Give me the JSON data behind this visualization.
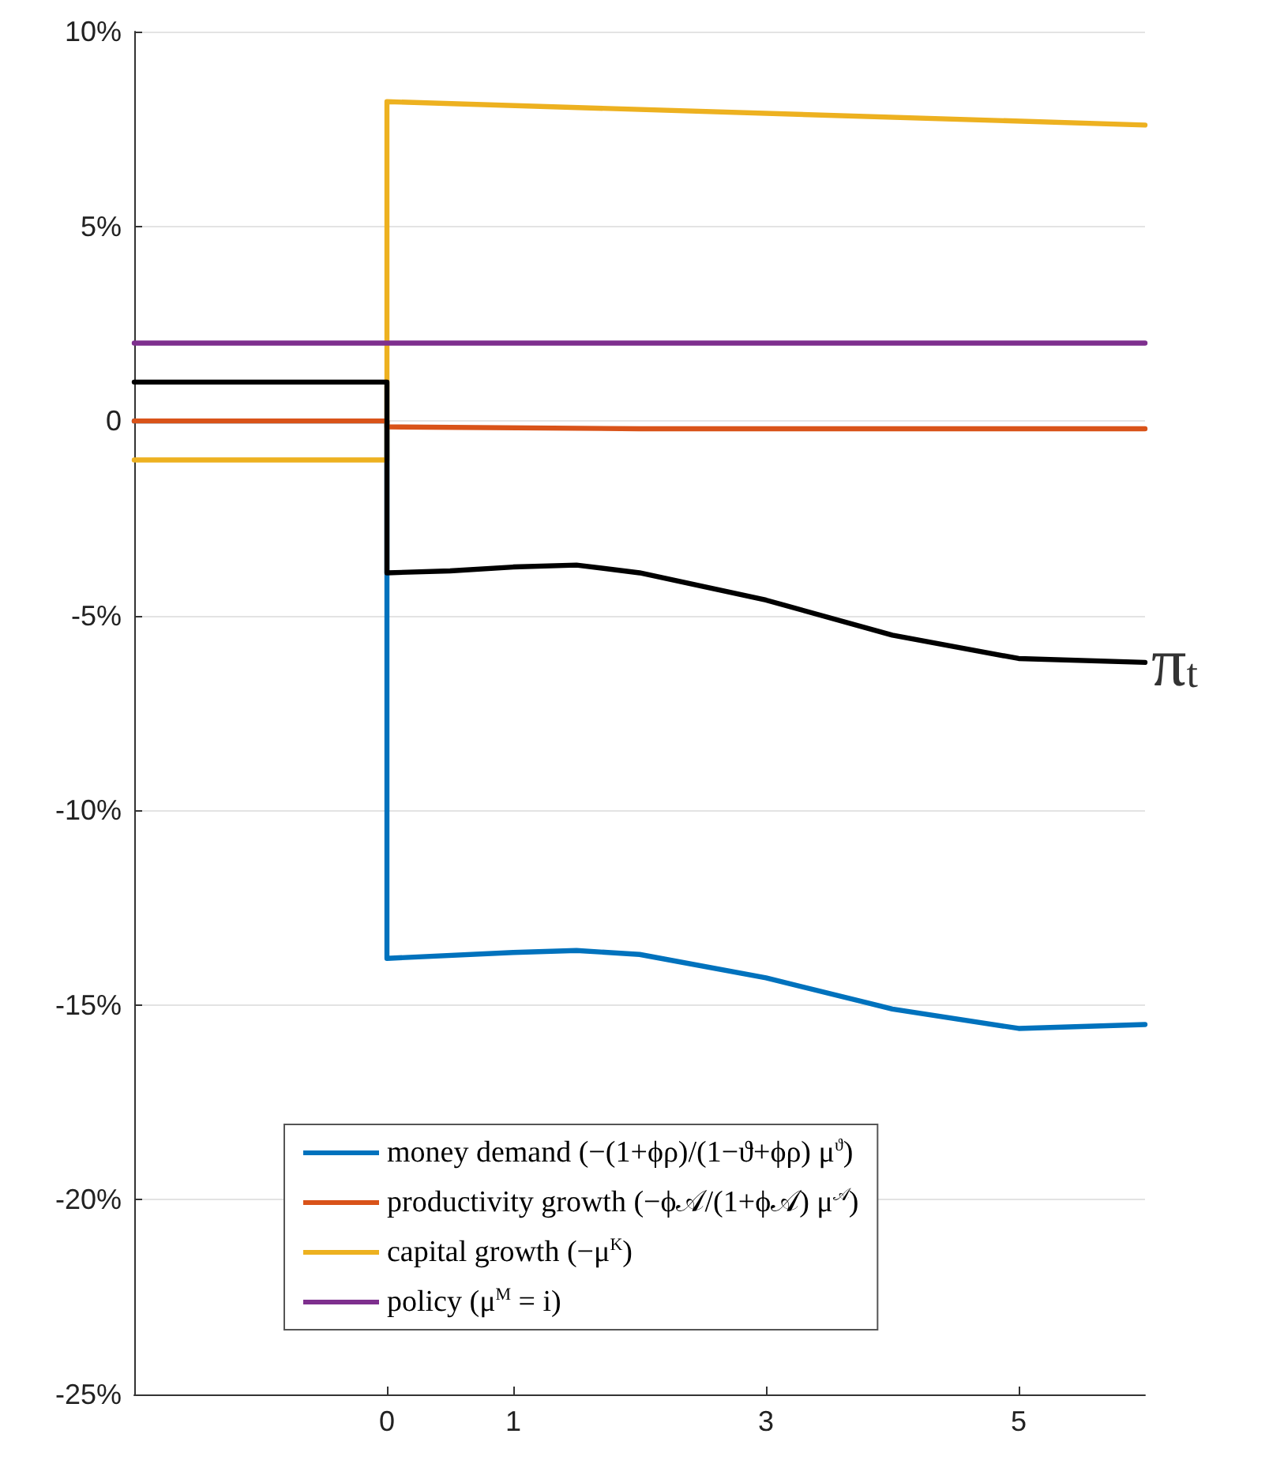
{
  "chart_data": {
    "type": "line",
    "xlim": [
      -2,
      6
    ],
    "xticks": [
      0,
      1,
      3,
      5
    ],
    "ylim": [
      -25,
      10
    ],
    "yticks": [
      {
        "value": -25,
        "label": "-25%"
      },
      {
        "value": -20,
        "label": "-20%"
      },
      {
        "value": -15,
        "label": "-15%"
      },
      {
        "value": -10,
        "label": "-10%"
      },
      {
        "value": -5,
        "label": "-5%"
      },
      0,
      {
        "value": 5,
        "label": "5%"
      },
      {
        "value": 10,
        "label": "10%"
      }
    ],
    "grid": "y",
    "legend": "bottom",
    "line_style": "solid",
    "marker": "none",
    "series": [
      {
        "name": "money demand (−(1+ϕρ)/(1−ϑ+ϕρ) μ$^{ϑ}$)",
        "color": "#0072bd",
        "x": [
          -2,
          0,
          0,
          1,
          1.5,
          2,
          3,
          4,
          5,
          6
        ],
        "values": [
          0,
          0,
          -13.8,
          -13.65,
          -13.6,
          -13.7,
          -14.3,
          -15.1,
          -15.6,
          -15.5
        ]
      },
      {
        "name": "productivity growth (−ϕ𝒜/(1+ϕ𝒜) μ$^{𝒜}$)",
        "color": "#d95319",
        "x": [
          -2,
          0,
          0,
          2,
          6
        ],
        "values": [
          0,
          0,
          -0.15,
          -0.2,
          -0.2
        ]
      },
      {
        "name": "capital growth (−μ$^{K}$)",
        "color": "#edb120",
        "x": [
          -2,
          0,
          0,
          6
        ],
        "values": [
          -1,
          -1,
          8.2,
          7.6
        ]
      },
      {
        "name": "policy (μ$^{M}$ = i)",
        "color": "#7e2f8e",
        "x": [
          -2,
          6
        ],
        "values": [
          2,
          2
        ]
      },
      {
        "color": "#000000",
        "x": [
          -2,
          0,
          0,
          0.5,
          1,
          1.5,
          2,
          3,
          4,
          5,
          6
        ],
        "values": [
          1,
          1,
          -3.9,
          -3.85,
          -3.75,
          -3.7,
          -3.9,
          -4.6,
          -5.5,
          -6.1,
          -6.2
        ]
      }
    ],
    "annotations": [
      {
        "text": "π$_{t}$",
        "x": 6,
        "y": -6.2
      }
    ]
  }
}
